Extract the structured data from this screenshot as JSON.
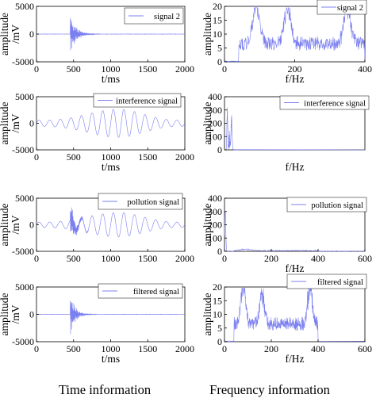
{
  "captions": {
    "left": "Time information",
    "right": "Frequency information"
  },
  "colors": {
    "line": "#7b7ff0",
    "axes": "#000000",
    "background": "#ffffff"
  },
  "chart_data": [
    {
      "id": "t1",
      "type": "line",
      "domain": "time",
      "grid": false,
      "xlabel": "t/ms",
      "ylabel": "amplitude\n/mV",
      "xlim": [
        0,
        2000
      ],
      "ylim": [
        -5000,
        5000
      ],
      "xticks": [
        0,
        500,
        1000,
        1500,
        2000
      ],
      "yticks": [
        5000,
        0,
        -5000
      ],
      "series": [
        {
          "name": "signal 2",
          "burst": {
            "center_ms": 480,
            "peak": 4000,
            "decay_ms": 120
          }
        }
      ]
    },
    {
      "id": "f1",
      "type": "line",
      "domain": "frequency",
      "grid": false,
      "xlabel": "f/Hz",
      "ylabel": "amplitude",
      "xlim": [
        0,
        400
      ],
      "ylim": [
        0,
        20
      ],
      "xticks": [
        0,
        200,
        400
      ],
      "yticks": [
        20,
        15,
        10,
        5,
        0
      ],
      "series": [
        {
          "name": "signal 2",
          "band_hz": [
            40,
            400
          ],
          "peaks": [
            [
              90,
              18.5
            ],
            [
              180,
              16
            ],
            [
              350,
              16.5
            ]
          ]
        }
      ]
    },
    {
      "id": "t2",
      "type": "line",
      "domain": "time",
      "grid": false,
      "xlabel": "t/ms",
      "ylabel": "amplitude\n/mV",
      "xlim": [
        0,
        2000
      ],
      "ylim": [
        -5000,
        5000
      ],
      "xticks": [
        0,
        500,
        1000,
        1500,
        2000
      ],
      "yticks": [
        5000,
        0,
        -5000
      ],
      "series": [
        {
          "name": "interference signal",
          "oscillation": {
            "amplitude_mV": [
              600,
              3000
            ],
            "grows_toward_ms": 1500
          }
        }
      ]
    },
    {
      "id": "f2",
      "type": "line",
      "domain": "frequency",
      "grid": false,
      "xlabel": "f/Hz",
      "ylabel": "amplitude",
      "xlim": [
        0,
        400
      ],
      "ylim": [
        0,
        400
      ],
      "xticks": [],
      "yticks": [
        400,
        300,
        200,
        100,
        0
      ],
      "series": [
        {
          "name": "interference signal",
          "peaks": [
            [
              8,
              340
            ],
            [
              20,
              280
            ]
          ]
        }
      ]
    },
    {
      "id": "t3",
      "type": "line",
      "domain": "time",
      "grid": false,
      "xlabel": "",
      "ylabel": "amplitude\n/mV",
      "xlim": [
        0,
        2000
      ],
      "ylim": [
        -5000,
        5000
      ],
      "xticks": [
        0,
        500,
        1000,
        1500,
        2000
      ],
      "yticks": [
        5000,
        0,
        -5000
      ],
      "series": [
        {
          "name": "pollution signal"
        }
      ]
    },
    {
      "id": "f3",
      "type": "line",
      "domain": "frequency",
      "grid": false,
      "xlabel": "f/Hz",
      "ylabel": "amplitude",
      "xlim": [
        0,
        600
      ],
      "ylim": [
        0,
        400
      ],
      "xticks": [
        0,
        200,
        400,
        600
      ],
      "yticks": [
        400,
        300,
        200,
        100,
        0
      ],
      "series": [
        {
          "name": "pollution signal",
          "peaks": [
            [
              5,
              340
            ]
          ]
        }
      ]
    },
    {
      "id": "t4",
      "type": "line",
      "domain": "time",
      "grid": false,
      "xlabel": "t/ms",
      "ylabel": "amplitude\n/mV",
      "xlim": [
        0,
        2000
      ],
      "ylim": [
        -5000,
        5000
      ],
      "xticks": [
        0,
        500,
        1000,
        1500,
        2000
      ],
      "yticks": [
        5000,
        0,
        -5000
      ],
      "series": [
        {
          "name": "filtered signal",
          "burst": {
            "center_ms": 480,
            "peak": 4000,
            "decay_ms": 110
          }
        }
      ]
    },
    {
      "id": "f4",
      "type": "line",
      "domain": "frequency",
      "grid": false,
      "xlabel": "f/Hz",
      "ylabel": "amplitude",
      "xlim": [
        0,
        600
      ],
      "ylim": [
        0,
        20
      ],
      "xticks": [
        0,
        200,
        400,
        600
      ],
      "yticks": [
        20,
        15,
        10,
        5,
        0
      ],
      "series": [
        {
          "name": "filtered signal",
          "band_hz": [
            40,
            400
          ],
          "peaks": [
            [
              80,
              19.5
            ],
            [
              160,
              14
            ],
            [
              365,
              17
            ]
          ]
        }
      ]
    }
  ]
}
